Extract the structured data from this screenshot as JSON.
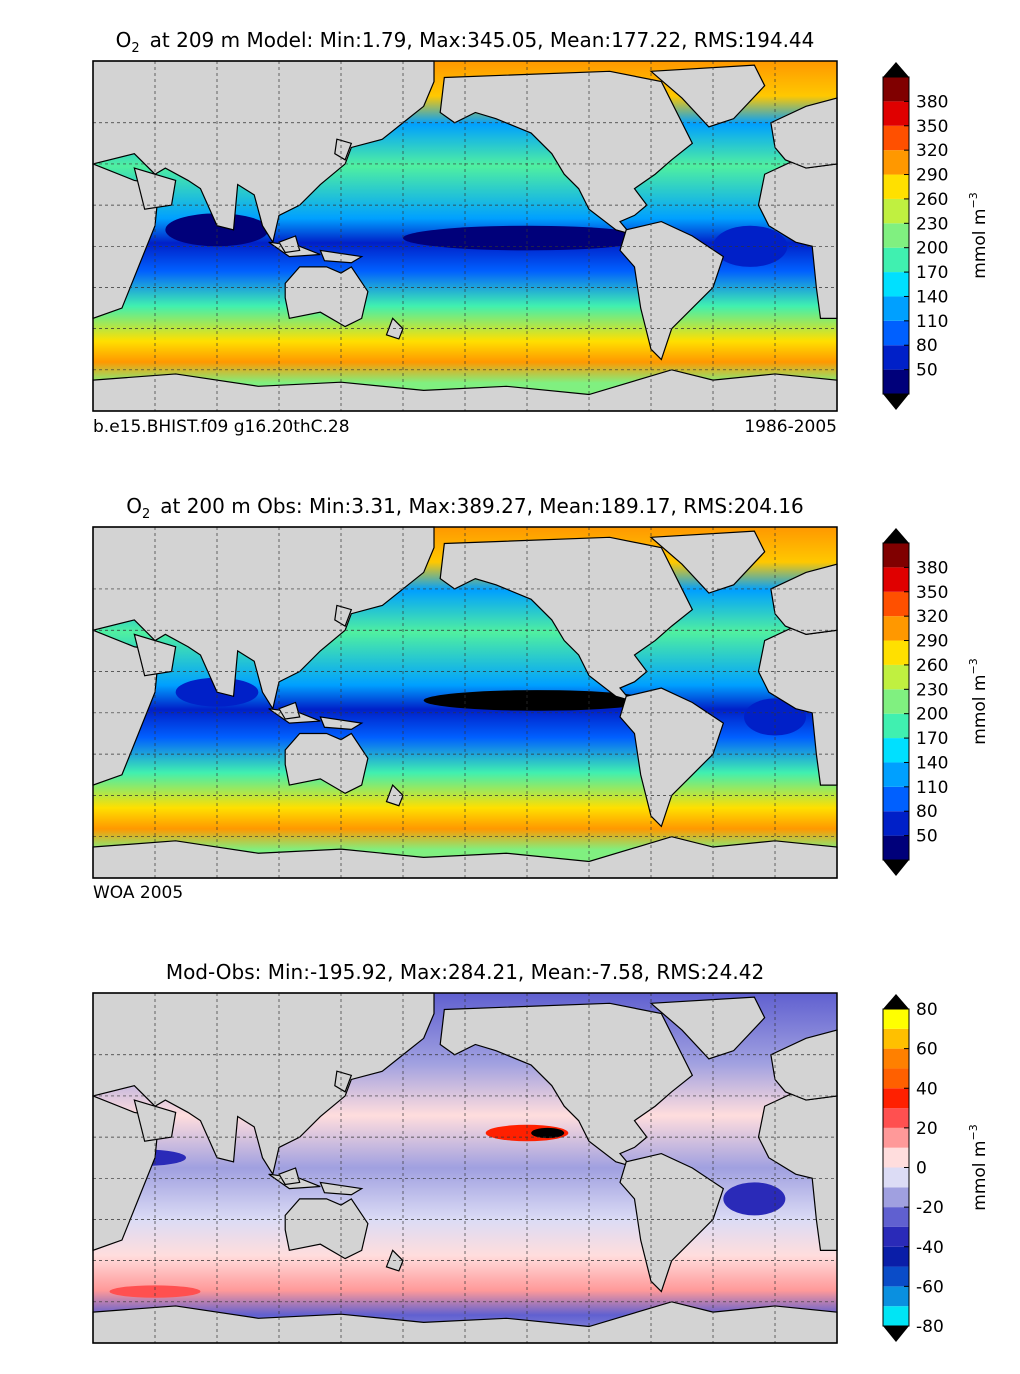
{
  "panels": [
    {
      "title": {
        "symbol": "O",
        "subscript": "2",
        "text": "at 209 m Model: Min:1.79, Max:345.05, Mean:177.22, RMS:194.44"
      },
      "footer_left": "b.e15.BHIST.f09 g16.20thC.28",
      "footer_right": "1986-2005",
      "colorbar": {
        "label": "mmol m",
        "label_exp": "−3",
        "lim": [
          20,
          410
        ],
        "ticks": [
          50,
          80,
          110,
          140,
          170,
          200,
          230,
          260,
          290,
          320,
          350,
          380
        ],
        "levels": [
          20,
          50,
          80,
          110,
          140,
          170,
          200,
          230,
          260,
          290,
          320,
          350,
          380,
          410
        ],
        "colors": [
          "#00007a",
          "#0020c8",
          "#0060ff",
          "#00a0ff",
          "#00e0ff",
          "#40f0b0",
          "#80f080",
          "#c0f040",
          "#ffe000",
          "#ff9800",
          "#ff5000",
          "#e00000",
          "#800000"
        ]
      }
    },
    {
      "title": {
        "symbol": "O",
        "subscript": "2",
        "text": "at 200 m Obs: Min:3.31, Max:389.27, Mean:189.17, RMS:204.16"
      },
      "footer_left": "WOA 2005",
      "colorbar": {
        "label": "mmol m",
        "label_exp": "−3",
        "lim": [
          20,
          410
        ],
        "ticks": [
          50,
          80,
          110,
          140,
          170,
          200,
          230,
          260,
          290,
          320,
          350,
          380
        ],
        "levels": [
          20,
          50,
          80,
          110,
          140,
          170,
          200,
          230,
          260,
          290,
          320,
          350,
          380,
          410
        ],
        "colors": [
          "#00007a",
          "#0020c8",
          "#0060ff",
          "#00a0ff",
          "#00e0ff",
          "#40f0b0",
          "#80f080",
          "#c0f040",
          "#ffe000",
          "#ff9800",
          "#ff5000",
          "#e00000",
          "#800000"
        ]
      }
    },
    {
      "title": {
        "text": "Mod-Obs: Min:-195.92, Max:284.21, Mean:-7.58, RMS:24.42"
      },
      "colorbar": {
        "label": "mmol m",
        "label_exp": "−3",
        "lim": [
          -80,
          80
        ],
        "ticks": [
          -80,
          -60,
          -40,
          -20,
          0,
          20,
          40,
          60,
          80
        ],
        "levels": [
          -80,
          -70,
          -60,
          -50,
          -40,
          -30,
          -20,
          -10,
          0,
          10,
          20,
          30,
          40,
          50,
          60,
          70,
          80
        ],
        "colors": [
          "#00e5f5",
          "#0a90e0",
          "#0a4cc8",
          "#0a1ea8",
          "#2a2ab8",
          "#6060d0",
          "#a0a0e0",
          "#dcdcf5",
          "#ffdddd",
          "#ff9999",
          "#ff5050",
          "#ff2000",
          "#ff6000",
          "#ff8000",
          "#ffc000",
          "#ffff00"
        ]
      }
    }
  ]
}
